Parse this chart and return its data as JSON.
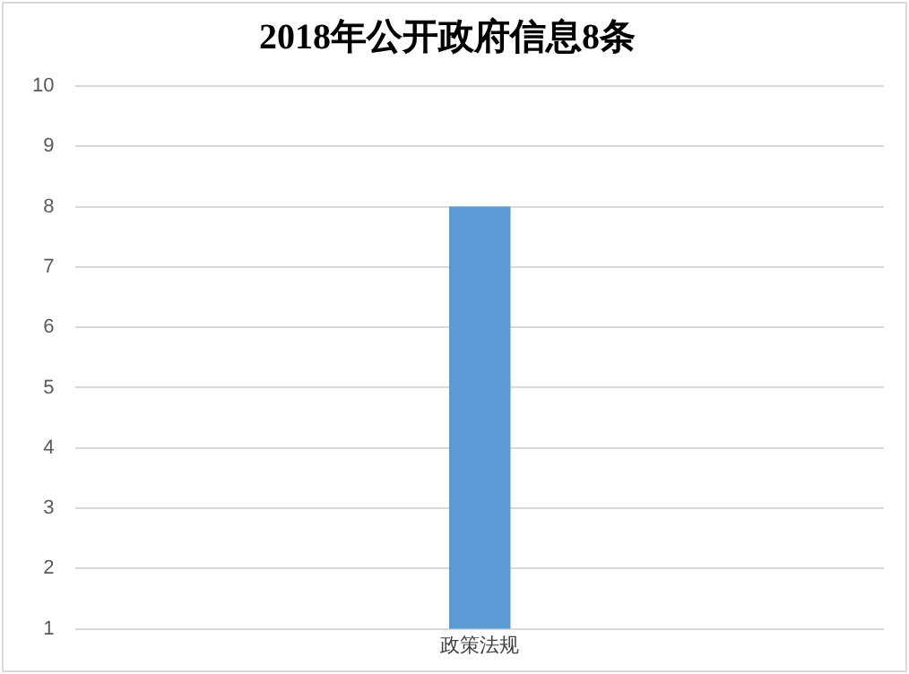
{
  "chart_data": {
    "type": "bar",
    "title": "2018年公开政府信息8条",
    "categories": [
      "政策法规"
    ],
    "series": [
      {
        "color": "#5b9bd5",
        "values": [
          8
        ]
      }
    ],
    "ylim": [
      1,
      10
    ],
    "yticks": [
      1,
      2,
      3,
      4,
      5,
      6,
      7,
      8,
      9,
      10
    ],
    "grid": "y",
    "legend": false
  }
}
